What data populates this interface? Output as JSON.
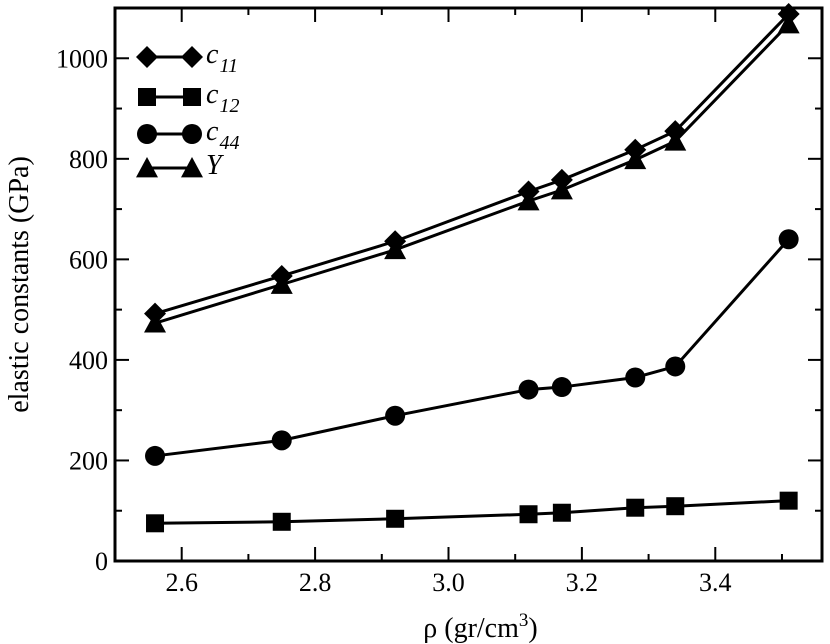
{
  "chart_data": {
    "type": "line",
    "title": "",
    "xlabel": "ρ (gr/cm",
    "xlabel_sup": "3",
    "xlabel_end": ")",
    "ylabel": "elastic constants (GPa)",
    "xlim": [
      2.5,
      3.56
    ],
    "ylim": [
      0,
      1100
    ],
    "xticks": [
      2.6,
      2.8,
      3.0,
      3.2,
      3.4
    ],
    "xtick_labels": [
      "2.6",
      "2.8",
      "3.0",
      "3.2",
      "3.4"
    ],
    "yticks": [
      0,
      200,
      400,
      600,
      800,
      1000
    ],
    "ytick_labels": [
      "0",
      "200",
      "400",
      "600",
      "800",
      "1000"
    ],
    "grid": false,
    "legend_position": "top-left",
    "x": [
      2.56,
      2.75,
      2.92,
      3.12,
      3.17,
      3.28,
      3.34,
      3.51
    ],
    "series": [
      {
        "name": "c",
        "subscript": "11",
        "marker": "diamond",
        "values": [
          492,
          567,
          636,
          735,
          758,
          818,
          855,
          1088
        ]
      },
      {
        "name": "c",
        "subscript": "12",
        "marker": "square",
        "values": [
          75,
          78,
          84,
          93,
          96,
          106,
          109,
          120
        ]
      },
      {
        "name": "c",
        "subscript": "44",
        "marker": "circle",
        "values": [
          209,
          240,
          289,
          341,
          346,
          365,
          387,
          640
        ]
      },
      {
        "name": "Y",
        "subscript": "",
        "marker": "triangle",
        "values": [
          473,
          550,
          619,
          716,
          738,
          798,
          835,
          1068
        ]
      }
    ]
  }
}
